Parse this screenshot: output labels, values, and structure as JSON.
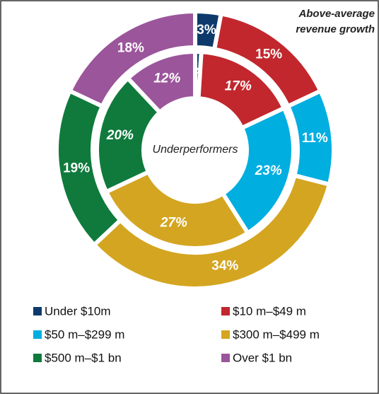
{
  "chart_data": {
    "type": "donut",
    "categories": [
      "Under $10m",
      "$10 m–$49 m",
      "$50 m–$299 m",
      "$300 m–$499 m",
      "$500 m–$1 bn",
      "Over $1 bn"
    ],
    "colors": [
      "#0d3a6b",
      "#c1272d",
      "#00aee0",
      "#d4a521",
      "#0f7a3c",
      "#9b559b"
    ],
    "series": [
      {
        "name": [
          "Above-average",
          "revenue growth"
        ],
        "values": [
          3,
          15,
          11,
          34,
          19,
          18
        ],
        "value_labels": [
          "3%",
          "15%",
          "11%",
          "34%",
          "19%",
          "18%"
        ]
      },
      {
        "name": [
          "Underperformers"
        ],
        "values": [
          1,
          17,
          23,
          27,
          20,
          12
        ],
        "value_labels": [
          "1%",
          "17%",
          "23%",
          "27%",
          "20%",
          "12%"
        ]
      }
    ]
  }
}
